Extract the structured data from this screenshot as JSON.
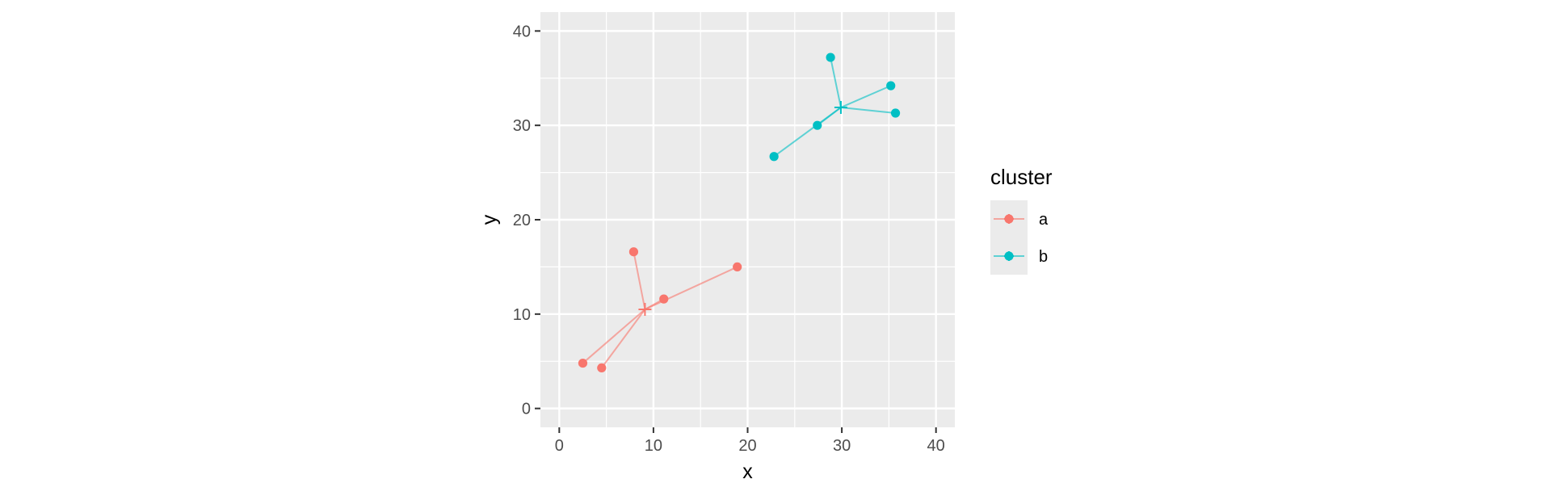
{
  "chart_data": {
    "type": "scatter",
    "xlabel": "x",
    "ylabel": "y",
    "xlim": [
      -2,
      42
    ],
    "ylim": [
      -2,
      42
    ],
    "x_ticks": [
      0,
      10,
      20,
      30,
      40
    ],
    "y_ticks": [
      0,
      10,
      20,
      30,
      40
    ],
    "grid": true,
    "legend": {
      "title": "cluster",
      "position": "right"
    },
    "series": [
      {
        "name": "a",
        "color": "#F8766D",
        "centroid": [
          9.1,
          10.5
        ],
        "points": [
          [
            2.5,
            4.8
          ],
          [
            4.5,
            4.3
          ],
          [
            7.9,
            16.6
          ],
          [
            11.1,
            11.6
          ],
          [
            18.9,
            15.0
          ]
        ]
      },
      {
        "name": "b",
        "color": "#00BFC4",
        "centroid": [
          29.9,
          31.9
        ],
        "points": [
          [
            22.8,
            26.7
          ],
          [
            27.4,
            30.0
          ],
          [
            28.8,
            37.2
          ],
          [
            35.2,
            34.2
          ],
          [
            35.7,
            31.3
          ]
        ]
      }
    ]
  }
}
